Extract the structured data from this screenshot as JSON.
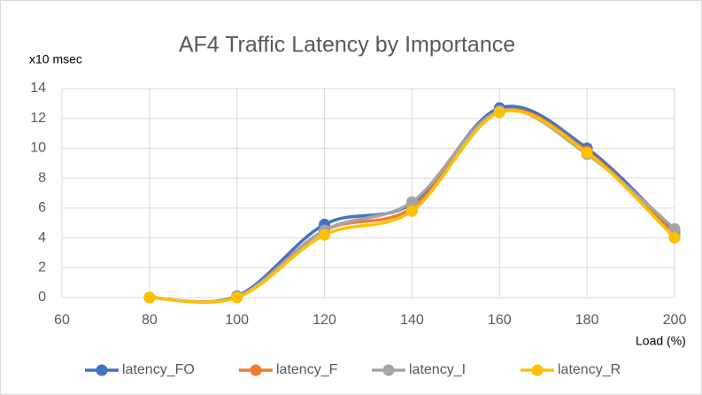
{
  "chart_data": {
    "type": "line",
    "title": "AF4 Traffic Latency by Importance",
    "y_label": "x10 msec",
    "x_label": "Load (%)",
    "x": [
      80,
      100,
      120,
      140,
      160,
      180,
      200
    ],
    "series": [
      {
        "name": "latency_FO",
        "color": "#4472c4",
        "values": [
          0,
          0.1,
          4.9,
          6.3,
          12.7,
          10.0,
          4.4
        ]
      },
      {
        "name": "latency_F",
        "color": "#ed7d31",
        "values": [
          0,
          0.05,
          4.5,
          6.0,
          12.5,
          9.8,
          4.2
        ]
      },
      {
        "name": "latency_I",
        "color": "#a5a5a5",
        "values": [
          0,
          0.05,
          4.5,
          6.4,
          12.5,
          9.6,
          4.6
        ]
      },
      {
        "name": "latency_R",
        "color": "#ffc000",
        "values": [
          0,
          0,
          4.2,
          5.8,
          12.4,
          9.7,
          4.0
        ]
      }
    ],
    "xlim": [
      60,
      200
    ],
    "xticks": [
      60,
      80,
      100,
      120,
      140,
      160,
      180,
      200
    ],
    "ylim": [
      0,
      14
    ],
    "yticks": [
      0,
      2,
      4,
      6,
      8,
      10,
      12,
      14
    ],
    "grid": true,
    "smooth": true,
    "legend": "bottom"
  }
}
